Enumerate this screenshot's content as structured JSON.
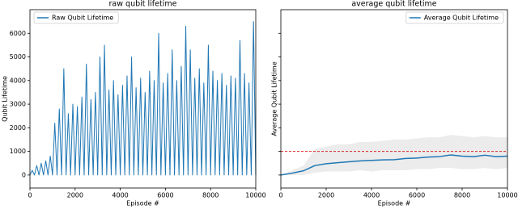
{
  "chart_data": [
    {
      "type": "line",
      "title": "raw qubit lifetime",
      "xlabel": "Episode #",
      "ylabel": "Qubit Lifetime",
      "legend": "upper left",
      "x": [
        0,
        100,
        200,
        300,
        400,
        500,
        600,
        700,
        800,
        900,
        1000,
        1100,
        1200,
        1300,
        1400,
        1500,
        1600,
        1700,
        1800,
        1900,
        2000,
        2100,
        2200,
        2300,
        2400,
        2500,
        2600,
        2700,
        2800,
        2900,
        3000,
        3100,
        3200,
        3300,
        3400,
        3500,
        3600,
        3700,
        3800,
        3900,
        4000,
        4100,
        4200,
        4300,
        4400,
        4500,
        4600,
        4700,
        4800,
        4900,
        5000,
        5100,
        5200,
        5300,
        5400,
        5500,
        5600,
        5700,
        5800,
        5900,
        6000,
        6100,
        6200,
        6300,
        6400,
        6500,
        6600,
        6700,
        6800,
        6900,
        7000,
        7100,
        7200,
        7300,
        7400,
        7500,
        7600,
        7700,
        7800,
        7900,
        8000,
        8100,
        8200,
        8300,
        8400,
        8500,
        8600,
        8700,
        8800,
        8900,
        9000,
        9100,
        9200,
        9300,
        9400,
        9500,
        9600,
        9700,
        9800,
        9900,
        10000
      ],
      "series": [
        {
          "name": "Raw Qubit Lifetime",
          "color": "#1f77b4",
          "values": [
            0,
            200,
            0,
            400,
            0,
            500,
            0,
            600,
            0,
            800,
            0,
            2200,
            0,
            2800,
            0,
            4500,
            0,
            2600,
            0,
            3000,
            0,
            2900,
            0,
            3300,
            0,
            4700,
            0,
            3200,
            0,
            3500,
            0,
            5000,
            0,
            5500,
            0,
            3600,
            0,
            4000,
            0,
            3400,
            0,
            3800,
            0,
            4200,
            0,
            5000,
            0,
            3700,
            0,
            4100,
            0,
            3500,
            0,
            4400,
            0,
            4000,
            0,
            6000,
            0,
            3900,
            0,
            4300,
            0,
            5300,
            0,
            4000,
            0,
            4600,
            0,
            6300,
            0,
            5300,
            0,
            4100,
            0,
            4500,
            0,
            3900,
            0,
            5500,
            0,
            4400,
            0,
            4000,
            0,
            4300,
            0,
            3800,
            0,
            4200,
            0,
            4100,
            0,
            5700,
            0,
            4300,
            0,
            3900,
            0,
            6500,
            0
          ]
        }
      ],
      "xlim": [
        0,
        10000
      ],
      "xticks": [
        0,
        2000,
        4000,
        6000,
        8000,
        10000
      ],
      "ylim": [
        -550,
        7000
      ],
      "yticks": [
        0,
        1000,
        2000,
        3000,
        4000,
        5000,
        6000
      ]
    },
    {
      "type": "line",
      "title": "average qubit lifetime",
      "xlabel": "Episode #",
      "ylabel": "Average Qubit Lifetime",
      "legend": "upper right",
      "x": [
        0,
        500,
        1000,
        1500,
        2000,
        2500,
        3000,
        3500,
        4000,
        4500,
        5000,
        5500,
        6000,
        6500,
        7000,
        7500,
        8000,
        8500,
        9000,
        9500,
        10000
      ],
      "series": [
        {
          "name": "Average Qubit Lifetime",
          "color": "#1f77b4",
          "values": [
            0,
            80,
            180,
            400,
            480,
            520,
            560,
            600,
            620,
            640,
            650,
            700,
            720,
            760,
            780,
            850,
            800,
            780,
            840,
            780,
            800
          ]
        }
      ],
      "band": {
        "color": "#e0e0e0",
        "lower": [
          0,
          0,
          0,
          100,
          150,
          150,
          150,
          200,
          150,
          200,
          200,
          200,
          250,
          250,
          300,
          300,
          250,
          250,
          300,
          250,
          300
        ],
        "upper": [
          0,
          200,
          400,
          1100,
          1200,
          1300,
          1300,
          1400,
          1400,
          1450,
          1500,
          1500,
          1550,
          1600,
          1600,
          1700,
          1650,
          1600,
          1650,
          1600,
          1600
        ]
      },
      "hline": {
        "value": 1000,
        "color": "#d62728"
      },
      "xlim": [
        0,
        10000
      ],
      "xticks": [
        0,
        2000,
        4000,
        6000,
        8000,
        10000
      ],
      "ylim": [
        -550,
        7000
      ],
      "yticks": [
        0,
        1000,
        2000,
        3000,
        4000,
        5000,
        6000
      ],
      "show_ytick_labels": false
    }
  ]
}
